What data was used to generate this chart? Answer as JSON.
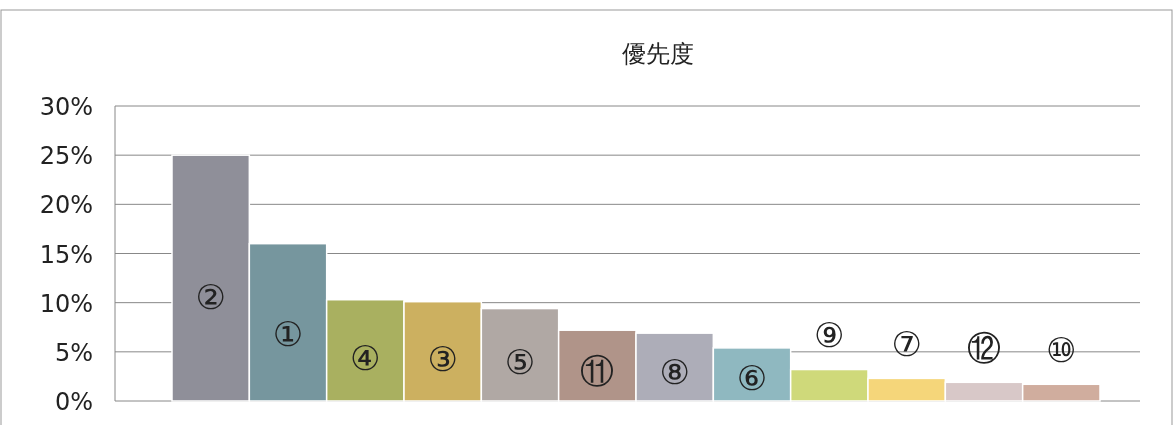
{
  "chart_data": {
    "type": "bar",
    "title": "優先度",
    "categories": [
      "②",
      "①",
      "④",
      "③",
      "⑤",
      "⑪",
      "⑧",
      "⑥",
      "⑨",
      "⑦",
      "⑫",
      "⑩"
    ],
    "values": [
      25,
      16,
      10.3,
      10.1,
      9.4,
      7.2,
      6.9,
      5.4,
      3.2,
      2.3,
      1.9,
      1.7
    ],
    "colors": [
      "#8f8f99",
      "#76969e",
      "#a9b060",
      "#ccb060",
      "#b0a8a4",
      "#b09489",
      "#adadb8",
      "#8fb8c0",
      "#cfd97a",
      "#f5d67a",
      "#d8c8c8",
      "#d0ad9e"
    ],
    "ylim": [
      0,
      30
    ],
    "yticks": [
      {
        "value": 0,
        "label": "0%"
      },
      {
        "value": 5,
        "label": "5%"
      },
      {
        "value": 10,
        "label": "10%"
      },
      {
        "value": 15,
        "label": "15%"
      },
      {
        "value": 20,
        "label": "20%"
      },
      {
        "value": 25,
        "label": "25%"
      },
      {
        "value": 30,
        "label": "30%"
      }
    ],
    "grid": "y"
  }
}
